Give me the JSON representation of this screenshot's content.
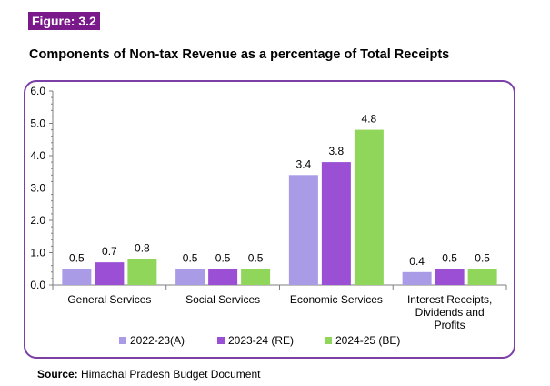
{
  "figure_label": "Figure: 3.2",
  "source_label": "Source:",
  "source_text": " Himachal Pradesh Budget Document",
  "chart_data": {
    "type": "bar",
    "title": "Components of Non-tax Revenue as a percentage of Total Receipts",
    "categories": [
      "General Services",
      "Social Services",
      "Economic Services",
      "Interest Receipts, Dividends and Profits"
    ],
    "series": [
      {
        "name": "2022-23(A)",
        "color": "#a99be6",
        "values": [
          0.5,
          0.5,
          3.4,
          0.4
        ]
      },
      {
        "name": "2023-24 (RE)",
        "color": "#9b4fd4",
        "values": [
          0.7,
          0.5,
          3.8,
          0.5
        ]
      },
      {
        "name": "2024-25 (BE)",
        "color": "#8fd65a",
        "values": [
          0.8,
          0.5,
          4.8,
          0.5
        ]
      }
    ],
    "ylim": [
      0,
      6
    ],
    "yticks": [
      "0.0",
      "1.0",
      "2.0",
      "3.0",
      "4.0",
      "5.0",
      "6.0"
    ],
    "grid": false,
    "legend": "bottom",
    "xlabel": "",
    "ylabel": ""
  }
}
